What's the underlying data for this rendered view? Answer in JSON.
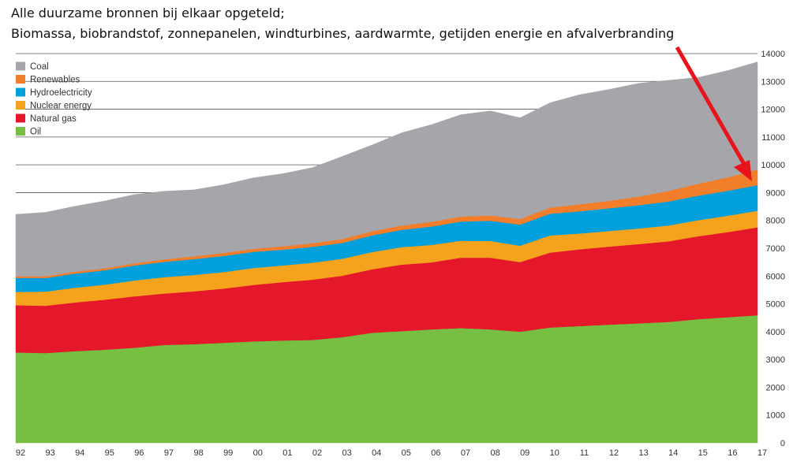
{
  "annotation": {
    "line1": "Alle duurzame bronnen bij elkaar opgeteld;",
    "line2": "Biomassa, biobrandstof, zonnepanelen, windturbines, aardwarmte, getijden energie en afvalverbranding",
    "arrow_color": "#e8141b"
  },
  "chart_data": {
    "type": "area",
    "stacked": true,
    "x": [
      "92",
      "93",
      "94",
      "95",
      "96",
      "97",
      "98",
      "99",
      "00",
      "01",
      "02",
      "03",
      "04",
      "05",
      "06",
      "07",
      "08",
      "09",
      "10",
      "11",
      "12",
      "13",
      "14",
      "15",
      "16",
      "17"
    ],
    "ylim": [
      0,
      14000
    ],
    "yticks": [
      0,
      1000,
      2000,
      3000,
      4000,
      5000,
      6000,
      7000,
      8000,
      9000,
      10000,
      11000,
      12000,
      13000,
      14000
    ],
    "y_axis_side": "right",
    "legend_position": "top-left",
    "series": [
      {
        "name": "Oil",
        "color": "#77bf43",
        "values": [
          3250,
          3230,
          3300,
          3350,
          3420,
          3520,
          3550,
          3600,
          3650,
          3680,
          3700,
          3800,
          3960,
          4020,
          4080,
          4130,
          4080,
          4000,
          4150,
          4200,
          4250,
          4300,
          4350,
          4450,
          4520,
          4590
        ]
      },
      {
        "name": "Natural gas",
        "color": "#e4172b",
        "values": [
          1700,
          1700,
          1750,
          1800,
          1850,
          1850,
          1900,
          1950,
          2030,
          2100,
          2170,
          2210,
          2280,
          2390,
          2410,
          2530,
          2580,
          2500,
          2690,
          2760,
          2810,
          2850,
          2900,
          2980,
          3060,
          3160
        ]
      },
      {
        "name": "Nuclear energy",
        "color": "#f5a31c",
        "values": [
          480,
          510,
          530,
          540,
          570,
          590,
          590,
          590,
          610,
          600,
          610,
          610,
          620,
          630,
          630,
          610,
          600,
          590,
          620,
          570,
          560,
          560,
          570,
          580,
          590,
          600
        ]
      },
      {
        "name": "Hydroelectricity",
        "color": "#00a0dc",
        "values": [
          500,
          490,
          510,
          520,
          540,
          550,
          570,
          580,
          580,
          570,
          570,
          570,
          600,
          620,
          660,
          690,
          730,
          760,
          780,
          800,
          820,
          840,
          860,
          880,
          900,
          920
        ]
      },
      {
        "name": "Renewables",
        "color": "#f27e2b",
        "values": [
          60,
          60,
          70,
          70,
          80,
          90,
          100,
          110,
          110,
          120,
          130,
          140,
          150,
          160,
          170,
          180,
          190,
          200,
          220,
          250,
          270,
          310,
          380,
          430,
          480,
          560
        ]
      },
      {
        "name": "Coal",
        "color": "#a6a5aa",
        "values": [
          2230,
          2300,
          2350,
          2420,
          2470,
          2450,
          2390,
          2450,
          2550,
          2610,
          2720,
          2970,
          3100,
          3330,
          3490,
          3660,
          3760,
          3640,
          3770,
          3940,
          4000,
          4070,
          3980,
          3820,
          3840,
          3870
        ]
      }
    ]
  }
}
